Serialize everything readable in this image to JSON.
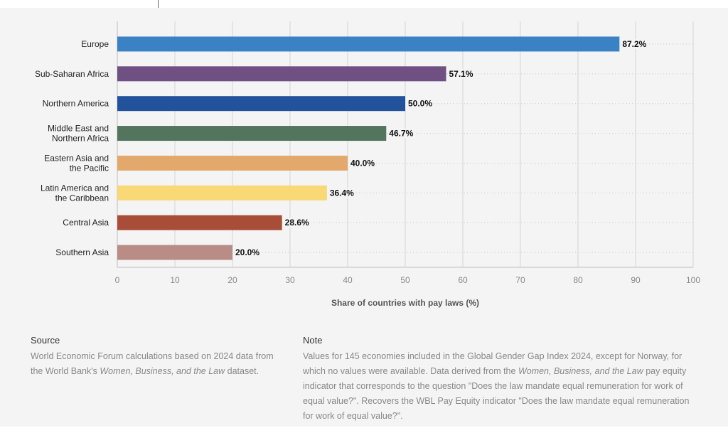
{
  "chart_data": {
    "type": "bar",
    "orientation": "horizontal",
    "categories": [
      [
        "Europe"
      ],
      [
        "Sub-Saharan Africa"
      ],
      [
        "Northern America"
      ],
      [
        "Middle East and",
        "Northern Africa"
      ],
      [
        "Eastern Asia and",
        "the Pacific"
      ],
      [
        "Latin America and",
        "the Caribbean"
      ],
      [
        "Central Asia"
      ],
      [
        "Southern Asia"
      ]
    ],
    "values": [
      87.2,
      57.1,
      50.0,
      46.7,
      40.0,
      36.4,
      28.6,
      20.0
    ],
    "value_labels": [
      "87.2%",
      "57.1%",
      "50.0%",
      "46.7%",
      "40.0%",
      "36.4%",
      "28.6%",
      "20.0%"
    ],
    "colors": [
      "#3b82c4",
      "#6e5182",
      "#22529c",
      "#53745d",
      "#e3a96c",
      "#f9d876",
      "#a84d38",
      "#b98d85"
    ],
    "xlim": [
      0,
      100
    ],
    "xticks": [
      0,
      10,
      20,
      30,
      40,
      50,
      60,
      70,
      80,
      90,
      100
    ],
    "xlabel": "Share of countries with pay laws (%)",
    "grid": true
  },
  "source": {
    "heading": "Source",
    "text_before": "World Economic Forum calculations based on 2024 data from the World Bank's ",
    "italic": "Women, Business, and the Law",
    "text_after": " dataset."
  },
  "note": {
    "heading": "Note",
    "text_before": "Values for 145 economies included in the Global Gender Gap Index 2024, except for Norway, for which no values were available. Data derived from the ",
    "italic": "Women, Business, and the Law",
    "text_after": " pay equity indicator that corresponds to the question \"Does the law mandate equal remuneration for work of equal value?\". Recovers the WBL Pay Equity indicator \"Does the law mandate equal remuneration for work of equal value?\"."
  }
}
